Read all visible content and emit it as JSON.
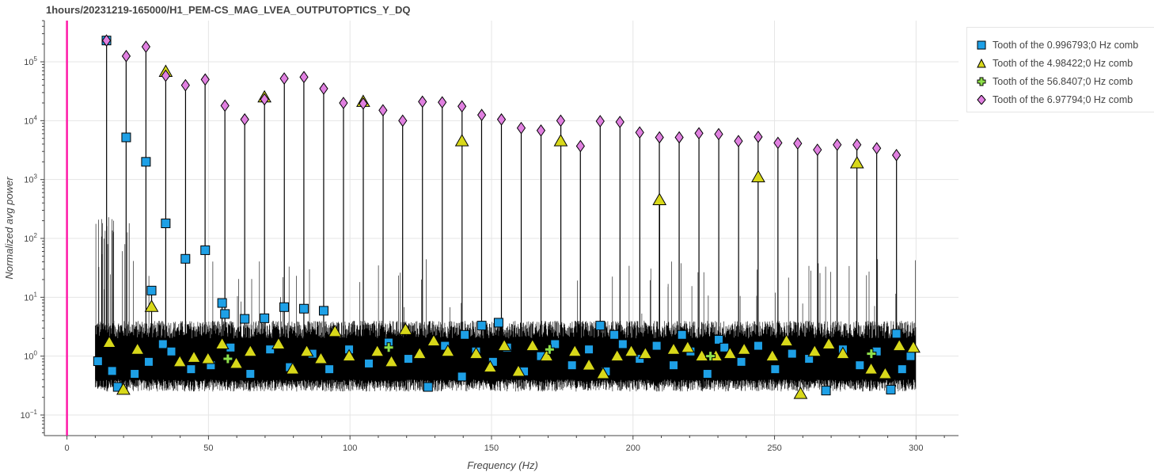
{
  "chart_data": {
    "type": "scatter",
    "title": "1hours/20231219-165000/H1_PEM-CS_MAG_LVEA_OUTPUTOPTICS_Y_DQ",
    "xlabel": "Frequency (Hz)",
    "ylabel": "Normalized avg power",
    "xlim": [
      -8,
      315
    ],
    "ylim_log10": [
      -1.35,
      5.7
    ],
    "y_scale": "log",
    "grid": true,
    "legend_position": "top-right outside",
    "x_ticks": [
      0,
      50,
      100,
      150,
      200,
      250,
      300
    ],
    "y_ticks": [
      {
        "value": 0.1,
        "base": "10",
        "exp": "−1"
      },
      {
        "value": 1,
        "base": "10",
        "exp": "0"
      },
      {
        "value": 10,
        "base": "10",
        "exp": "1"
      },
      {
        "value": 100,
        "base": "10",
        "exp": "2"
      },
      {
        "value": 1000,
        "base": "10",
        "exp": "3"
      },
      {
        "value": 10000,
        "base": "10",
        "exp": "4"
      },
      {
        "value": 100000,
        "base": "10",
        "exp": "5"
      }
    ],
    "vertical_marker_x": 0,
    "vertical_marker_color": "#ff1aa8",
    "series": [
      {
        "name": "Tooth of the 0.996793;0 Hz comb",
        "marker": "square",
        "color": "#1ea0e6",
        "points": [
          [
            10.97,
            0.82
          ],
          [
            13.96,
            230000
          ],
          [
            20.93,
            5200
          ],
          [
            27.91,
            2000
          ],
          [
            29.9,
            13
          ],
          [
            34.89,
            180
          ],
          [
            41.86,
            45
          ],
          [
            48.84,
            63
          ],
          [
            54.82,
            8.0
          ],
          [
            55.82,
            5.2
          ],
          [
            62.8,
            4.3
          ],
          [
            69.78,
            4.4
          ],
          [
            76.75,
            6.8
          ],
          [
            83.73,
            6.4
          ],
          [
            90.71,
            5.9
          ],
          [
            140.55,
            2.3
          ],
          [
            146.53,
            3.3
          ],
          [
            152.51,
            3.7
          ],
          [
            188.4,
            3.3
          ],
          [
            193.38,
            2.3
          ],
          [
            217.31,
            2.3
          ],
          [
            230.27,
            1.9
          ],
          [
            293.07,
            2.4
          ],
          [
            291.08,
            0.27
          ],
          [
            17.94,
            0.3
          ],
          [
            15.95,
            0.56
          ],
          [
            23.92,
            0.5
          ],
          [
            28.9,
            0.8
          ],
          [
            33.89,
            1.6
          ],
          [
            36.88,
            1.2
          ],
          [
            43.85,
            0.6
          ],
          [
            50.83,
            0.7
          ],
          [
            57.81,
            1.4
          ],
          [
            64.79,
            0.5
          ],
          [
            71.76,
            1.3
          ],
          [
            78.74,
            0.65
          ],
          [
            86.72,
            1.1
          ],
          [
            92.7,
            0.6
          ],
          [
            99.68,
            1.3
          ],
          [
            106.66,
            0.75
          ],
          [
            113.64,
            1.7
          ],
          [
            120.62,
            0.9
          ],
          [
            127.59,
            0.3
          ],
          [
            133.57,
            1.5
          ],
          [
            139.56,
            0.45
          ],
          [
            144.54,
            1.2
          ],
          [
            150.52,
            0.8
          ],
          [
            155.51,
            1.4
          ],
          [
            161.49,
            0.55
          ],
          [
            167.47,
            1.0
          ],
          [
            172.45,
            1.6
          ],
          [
            178.44,
            0.7
          ],
          [
            184.42,
            1.3
          ],
          [
            190.4,
            0.55
          ],
          [
            196.38,
            1.6
          ],
          [
            202.36,
            0.9
          ],
          [
            208.35,
            1.5
          ],
          [
            214.33,
            0.7
          ],
          [
            220.31,
            1.2
          ],
          [
            226.29,
            0.5
          ],
          [
            232.28,
            1.4
          ],
          [
            238.26,
            0.8
          ],
          [
            244.24,
            1.5
          ],
          [
            250.22,
            0.6
          ],
          [
            256.2,
            1.1
          ],
          [
            262.19,
            0.9
          ],
          [
            268.17,
            0.26
          ],
          [
            274.15,
            1.3
          ],
          [
            280.13,
            0.7
          ],
          [
            286.11,
            1.2
          ],
          [
            295.08,
            0.6
          ],
          [
            298.07,
            1.0
          ]
        ]
      },
      {
        "name": "Tooth of the 4.98422;0 Hz comb",
        "marker": "triangle",
        "color": "#d8d81a",
        "points": [
          [
            14.95,
            1.7
          ],
          [
            19.94,
            0.27
          ],
          [
            24.92,
            1.3
          ],
          [
            29.9,
            6.9
          ],
          [
            34.89,
            68000
          ],
          [
            39.87,
            0.8
          ],
          [
            44.86,
            0.95
          ],
          [
            49.84,
            0.9
          ],
          [
            54.82,
            1.6
          ],
          [
            59.81,
            0.75
          ],
          [
            64.79,
            1.2
          ],
          [
            69.78,
            25000
          ],
          [
            74.76,
            1.6
          ],
          [
            79.75,
            0.6
          ],
          [
            84.73,
            1.2
          ],
          [
            89.72,
            0.9
          ],
          [
            94.7,
            2.6
          ],
          [
            99.69,
            1.0
          ],
          [
            104.67,
            21000
          ],
          [
            109.65,
            1.2
          ],
          [
            114.64,
            0.8
          ],
          [
            119.62,
            2.8
          ],
          [
            124.61,
            1.1
          ],
          [
            129.59,
            1.8
          ],
          [
            134.58,
            1.2
          ],
          [
            139.56,
            4500
          ],
          [
            144.55,
            1.1
          ],
          [
            149.53,
            0.65
          ],
          [
            154.52,
            1.5
          ],
          [
            159.5,
            0.55
          ],
          [
            164.49,
            1.5
          ],
          [
            169.47,
            1.0
          ],
          [
            174.46,
            4500
          ],
          [
            179.44,
            1.2
          ],
          [
            184.42,
            0.7
          ],
          [
            189.41,
            0.5
          ],
          [
            194.39,
            1.0
          ],
          [
            199.38,
            1.2
          ],
          [
            204.36,
            1.1
          ],
          [
            209.35,
            450
          ],
          [
            214.33,
            1.3
          ],
          [
            219.32,
            1.4
          ],
          [
            224.3,
            1.0
          ],
          [
            229.29,
            1.0
          ],
          [
            234.27,
            1.1
          ],
          [
            239.26,
            1.3
          ],
          [
            244.24,
            1100
          ],
          [
            249.23,
            1.0
          ],
          [
            254.21,
            1.8
          ],
          [
            259.2,
            0.23
          ],
          [
            264.18,
            1.2
          ],
          [
            269.17,
            1.6
          ],
          [
            274.15,
            1.1
          ],
          [
            279.14,
            1900
          ],
          [
            284.12,
            0.6
          ],
          [
            289.1,
            0.5
          ],
          [
            294.09,
            1.5
          ],
          [
            299.07,
            1.4
          ]
        ]
      },
      {
        "name": "Tooth of the 56.8407;0 Hz comb",
        "marker": "plus",
        "color": "#8ee04a",
        "points": [
          [
            56.84,
            0.9
          ],
          [
            113.68,
            1.4
          ],
          [
            170.52,
            1.3
          ],
          [
            227.36,
            1.0
          ],
          [
            284.2,
            1.1
          ]
        ]
      },
      {
        "name": "Tooth of the 6.97794;0 Hz comb",
        "marker": "diamond",
        "color": "#e080e0",
        "points": [
          [
            13.96,
            230000
          ],
          [
            20.93,
            125000
          ],
          [
            27.91,
            180000
          ],
          [
            34.89,
            58000
          ],
          [
            41.87,
            40000
          ],
          [
            48.84,
            50000
          ],
          [
            55.82,
            18000
          ],
          [
            62.8,
            10500
          ],
          [
            69.78,
            23000
          ],
          [
            76.76,
            52000
          ],
          [
            83.73,
            55000
          ],
          [
            90.71,
            35000
          ],
          [
            97.69,
            20000
          ],
          [
            104.67,
            19500
          ],
          [
            111.65,
            15000
          ],
          [
            118.62,
            10000
          ],
          [
            125.6,
            21000
          ],
          [
            132.58,
            20500
          ],
          [
            139.56,
            17500
          ],
          [
            146.54,
            12500
          ],
          [
            153.51,
            10500
          ],
          [
            160.49,
            7500
          ],
          [
            167.47,
            6800
          ],
          [
            174.45,
            10000
          ],
          [
            181.43,
            3700
          ],
          [
            188.4,
            9800
          ],
          [
            195.38,
            9500
          ],
          [
            202.36,
            6300
          ],
          [
            209.34,
            5200
          ],
          [
            216.32,
            5200
          ],
          [
            223.29,
            6100
          ],
          [
            230.27,
            5900
          ],
          [
            237.25,
            4500
          ],
          [
            244.23,
            5300
          ],
          [
            251.21,
            4200
          ],
          [
            258.18,
            4100
          ],
          [
            265.16,
            3200
          ],
          [
            272.14,
            3900
          ],
          [
            279.12,
            3900
          ],
          [
            286.1,
            3400
          ],
          [
            293.07,
            2600
          ]
        ]
      }
    ]
  }
}
